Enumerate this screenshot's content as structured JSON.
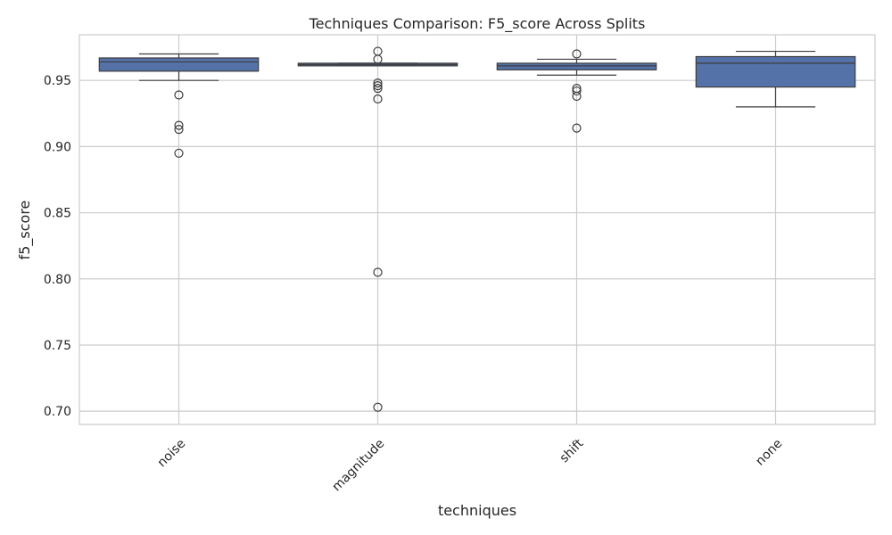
{
  "chart_data": {
    "type": "box",
    "title": "Techniques Comparison: F5_score Across Splits",
    "xlabel": "techniques",
    "ylabel": "f5_score",
    "ylim": [
      0.69,
      0.9845
    ],
    "yticks": [
      0.7,
      0.75,
      0.8,
      0.85,
      0.9,
      0.95
    ],
    "ytick_labels": [
      "0.70",
      "0.75",
      "0.80",
      "0.85",
      "0.90",
      "0.95"
    ],
    "grid": true,
    "box_color": "#5471a8",
    "categories": [
      "noise",
      "magnitude",
      "shift",
      "none"
    ],
    "boxes": [
      {
        "category": "noise",
        "q1": 0.957,
        "median": 0.964,
        "q3": 0.967,
        "whisker_low": 0.95,
        "whisker_high": 0.97,
        "outliers": [
          0.939,
          0.916,
          0.913,
          0.895
        ]
      },
      {
        "category": "magnitude",
        "q1": 0.961,
        "median": 0.962,
        "q3": 0.963,
        "whisker_low": 0.961,
        "whisker_high": 0.963,
        "outliers": [
          0.972,
          0.966,
          0.948,
          0.946,
          0.944,
          0.936,
          0.805,
          0.703
        ]
      },
      {
        "category": "shift",
        "q1": 0.958,
        "median": 0.961,
        "q3": 0.963,
        "whisker_low": 0.954,
        "whisker_high": 0.966,
        "outliers": [
          0.97,
          0.944,
          0.942,
          0.938,
          0.914
        ]
      },
      {
        "category": "none",
        "q1": 0.945,
        "median": 0.963,
        "q3": 0.968,
        "whisker_low": 0.93,
        "whisker_high": 0.972,
        "outliers": []
      }
    ]
  }
}
